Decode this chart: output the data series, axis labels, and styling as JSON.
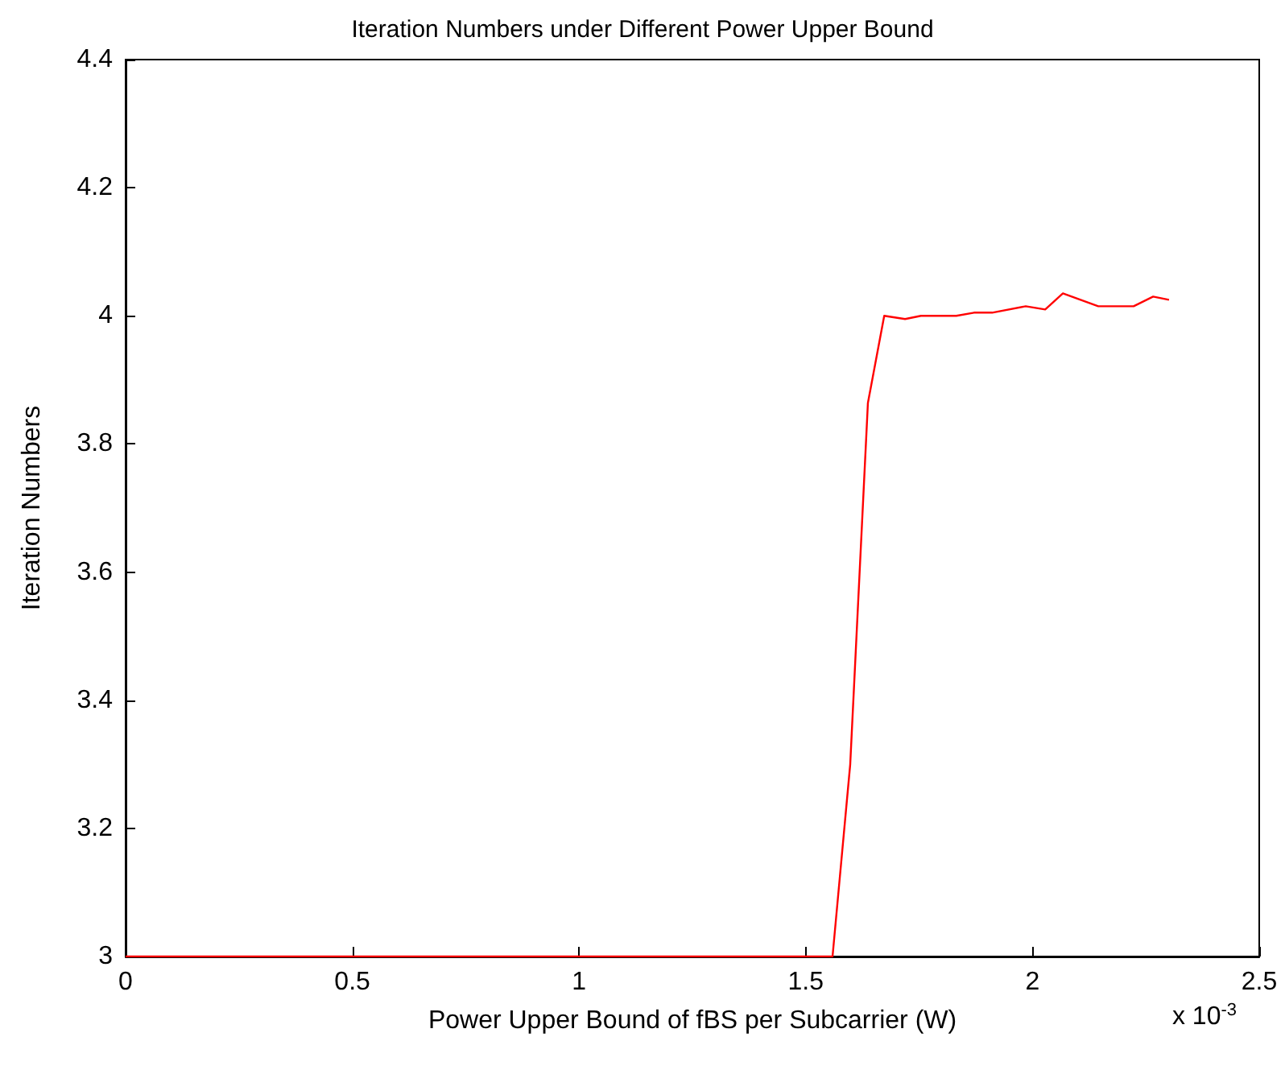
{
  "chart_data": {
    "type": "line",
    "title": "Iteration Numbers under Different Power Upper Bound",
    "xlabel": "Power Upper Bound of fBS per Subcarrier (W)",
    "ylabel": "Iteration Numbers",
    "annotations": [
      "x 10$^{-3}$"
    ],
    "x": [
      0,
      1.559,
      1.598,
      1.637,
      1.673,
      1.719,
      1.754,
      1.832,
      1.871,
      1.911,
      1.985,
      2.028,
      2.067,
      2.145,
      2.223,
      2.266,
      2.301
    ],
    "series": [
      {
        "color": "#ff0000",
        "values": [
          3,
          3,
          3.3,
          3.864,
          4.0,
          3.995,
          4.0,
          4.0,
          4.005,
          4.005,
          4.015,
          4.01,
          4.035,
          4.015,
          4.015,
          4.03,
          4.025
        ]
      }
    ],
    "xlim": [
      0,
      2.5
    ],
    "xticks": [
      0,
      0.5,
      1,
      1.5,
      2,
      2.5
    ],
    "ylim": [
      3,
      4.4
    ],
    "yticks": [
      3,
      3.2,
      3.4,
      3.6,
      3.8,
      4,
      4.2,
      4.4
    ],
    "marker": "none",
    "line_style": "solid"
  }
}
